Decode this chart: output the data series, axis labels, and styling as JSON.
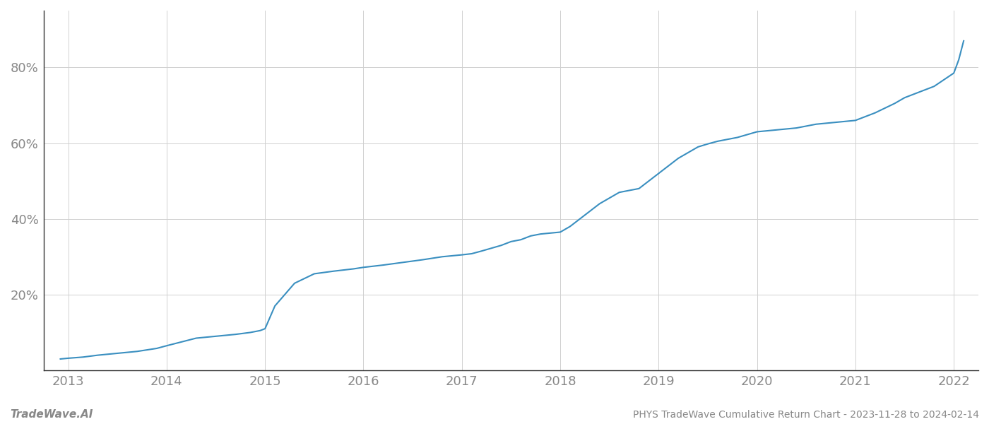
{
  "title": "PHYS TradeWave Cumulative Return Chart - 2023-11-28 to 2024-02-14",
  "watermark": "TradeWave.AI",
  "line_color": "#3a8fc0",
  "background_color": "#ffffff",
  "grid_color": "#d0d0d0",
  "x_values": [
    2012.92,
    2013.0,
    2013.15,
    2013.3,
    2013.5,
    2013.7,
    2013.9,
    2014.0,
    2014.15,
    2014.3,
    2014.5,
    2014.7,
    2014.85,
    2014.95,
    2015.0,
    2015.05,
    2015.1,
    2015.2,
    2015.3,
    2015.5,
    2015.7,
    2015.9,
    2016.0,
    2016.2,
    2016.4,
    2016.6,
    2016.8,
    2017.0,
    2017.1,
    2017.2,
    2017.4,
    2017.5,
    2017.6,
    2017.7,
    2017.8,
    2018.0,
    2018.1,
    2018.2,
    2018.4,
    2018.5,
    2018.6,
    2018.7,
    2018.8,
    2019.0,
    2019.1,
    2019.2,
    2019.3,
    2019.4,
    2019.5,
    2019.6,
    2019.7,
    2019.8,
    2020.0,
    2020.2,
    2020.4,
    2020.5,
    2020.6,
    2020.8,
    2021.0,
    2021.2,
    2021.4,
    2021.5,
    2021.6,
    2021.8,
    2022.0,
    2022.05,
    2022.1
  ],
  "y_values": [
    3,
    3.2,
    3.5,
    4.0,
    4.5,
    5.0,
    5.8,
    6.5,
    7.5,
    8.5,
    9.0,
    9.5,
    10.0,
    10.5,
    11.0,
    14.0,
    17.0,
    20.0,
    23.0,
    25.5,
    26.2,
    26.8,
    27.2,
    27.8,
    28.5,
    29.2,
    30.0,
    30.5,
    30.8,
    31.5,
    33.0,
    34.0,
    34.5,
    35.5,
    36.0,
    36.5,
    38.0,
    40.0,
    44.0,
    45.5,
    47.0,
    47.5,
    48.0,
    52.0,
    54.0,
    56.0,
    57.5,
    59.0,
    59.8,
    60.5,
    61.0,
    61.5,
    63.0,
    63.5,
    64.0,
    64.5,
    65.0,
    65.5,
    66.0,
    68.0,
    70.5,
    72.0,
    73.0,
    75.0,
    78.5,
    82.0,
    87.0
  ],
  "xlim": [
    2012.75,
    2022.25
  ],
  "ylim": [
    0,
    95
  ],
  "yticks": [
    20,
    40,
    60,
    80
  ],
  "xticks": [
    2013,
    2014,
    2015,
    2016,
    2017,
    2018,
    2019,
    2020,
    2021,
    2022
  ],
  "line_width": 1.5,
  "title_fontsize": 10,
  "watermark_fontsize": 11,
  "tick_label_fontsize": 13,
  "tick_color": "#888888",
  "spine_color": "#333333",
  "footer_color": "#888888"
}
